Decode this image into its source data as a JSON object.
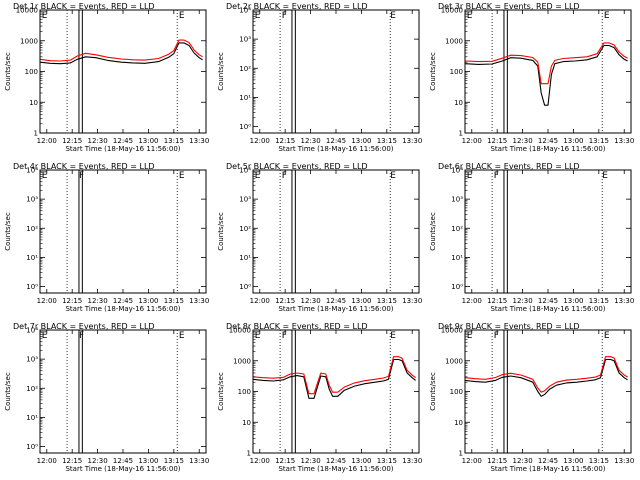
{
  "figure": {
    "x_tick_labels": [
      "12:00",
      "12:15",
      "12:30",
      "12:45",
      "13:00",
      "13:15",
      "13:30"
    ],
    "xlabel": "Start Time (18-May-16 11:56:00)",
    "ylabel": "Counts/sec",
    "series_colors": {
      "events": "#000000",
      "lld": "#ff0000"
    }
  },
  "chart_data": [
    {
      "type": "line",
      "title": "Det 1r BLACK = Events, RED = LLD",
      "xlim_min": [
        0,
        98
      ],
      "x_tick_min": [
        4,
        19,
        34,
        49,
        64,
        79,
        94
      ],
      "y_scale": "log",
      "ylim": [
        1,
        10000
      ],
      "y_ticks": [
        {
          "v": 1,
          "label": "1"
        },
        {
          "v": 10,
          "label": "10"
        },
        {
          "v": 100,
          "label": "100"
        },
        {
          "v": 1000,
          "label": "1000"
        },
        {
          "v": 10000,
          "label": "10000"
        }
      ],
      "dotted_x_min": [
        16,
        81
      ],
      "solid_x_min": [
        23,
        25
      ],
      "markers": [
        {
          "x": 1,
          "text": "E"
        },
        {
          "x": 82,
          "text": "E"
        }
      ],
      "series": [
        {
          "key": "events",
          "x": [
            0,
            6,
            12,
            18,
            22,
            27,
            33,
            40,
            48,
            55,
            62,
            70,
            76,
            79,
            82,
            85,
            88,
            91,
            94,
            96
          ],
          "values": [
            200,
            185,
            180,
            190,
            250,
            300,
            280,
            230,
            200,
            190,
            185,
            210,
            290,
            380,
            850,
            850,
            700,
            400,
            280,
            240
          ]
        },
        {
          "key": "lld",
          "x": [
            0,
            6,
            12,
            18,
            22,
            27,
            33,
            40,
            48,
            55,
            62,
            70,
            76,
            79,
            82,
            85,
            88,
            91,
            94,
            96
          ],
          "values": [
            250,
            225,
            220,
            235,
            320,
            390,
            350,
            290,
            255,
            240,
            235,
            265,
            365,
            480,
            1050,
            1050,
            870,
            500,
            350,
            300
          ]
        }
      ]
    },
    {
      "type": "line",
      "title": "Det 2r BLACK = Events, RED = LLD",
      "xlim_min": [
        0,
        98
      ],
      "x_tick_min": [
        4,
        19,
        34,
        49,
        64,
        79,
        94
      ],
      "y_scale": "log",
      "ylim": [
        0.6,
        10000
      ],
      "y_ticks": [
        {
          "v": 1,
          "label": "10⁰"
        },
        {
          "v": 10,
          "label": "10¹"
        },
        {
          "v": 100,
          "label": "10²"
        },
        {
          "v": 1000,
          "label": "10³"
        },
        {
          "v": 10000,
          "label": "10⁴"
        }
      ],
      "dotted_x_min": [
        16,
        81
      ],
      "solid_x_min": [
        23,
        25
      ],
      "markers": [
        {
          "x": 1,
          "text": "E"
        },
        {
          "x": 17,
          "text": "F"
        },
        {
          "x": 81,
          "text": "E"
        }
      ],
      "series": []
    },
    {
      "type": "line",
      "title": "Det 3r BLACK = Events, RED = LLD",
      "xlim_min": [
        0,
        98
      ],
      "x_tick_min": [
        4,
        19,
        34,
        49,
        64,
        79,
        94
      ],
      "y_scale": "log",
      "ylim": [
        1,
        10000
      ],
      "y_ticks": [
        {
          "v": 1,
          "label": "1"
        },
        {
          "v": 10,
          "label": "10"
        },
        {
          "v": 100,
          "label": "100"
        },
        {
          "v": 1000,
          "label": "1000"
        },
        {
          "v": 10000,
          "label": "10000"
        }
      ],
      "dotted_x_min": [
        16,
        81
      ],
      "solid_x_min": [
        23,
        25
      ],
      "markers": [
        {
          "x": 1,
          "text": "E"
        },
        {
          "x": 82,
          "text": "E"
        }
      ],
      "series": [
        {
          "key": "events",
          "x": [
            0,
            8,
            16,
            22,
            27,
            33,
            40,
            43,
            45,
            47,
            49,
            51,
            53,
            58,
            65,
            72,
            78,
            82,
            85,
            88,
            91,
            94,
            96
          ],
          "values": [
            180,
            170,
            175,
            220,
            280,
            270,
            230,
            150,
            20,
            8,
            8,
            80,
            180,
            210,
            220,
            240,
            300,
            700,
            700,
            600,
            350,
            250,
            220
          ]
        },
        {
          "key": "lld",
          "x": [
            0,
            8,
            16,
            22,
            27,
            33,
            40,
            43,
            45,
            47,
            49,
            51,
            53,
            58,
            65,
            72,
            78,
            82,
            85,
            88,
            91,
            94,
            96
          ],
          "values": [
            220,
            210,
            215,
            270,
            340,
            330,
            285,
            200,
            40,
            40,
            40,
            150,
            230,
            265,
            280,
            300,
            380,
            850,
            850,
            730,
            430,
            310,
            270
          ]
        }
      ]
    },
    {
      "type": "line",
      "title": "Det 4r BLACK = Events, RED = LLD",
      "xlim_min": [
        0,
        98
      ],
      "x_tick_min": [
        4,
        19,
        34,
        49,
        64,
        79,
        94
      ],
      "y_scale": "log",
      "ylim": [
        0.6,
        10000
      ],
      "y_ticks": [
        {
          "v": 1,
          "label": "10⁰"
        },
        {
          "v": 10,
          "label": "10¹"
        },
        {
          "v": 100,
          "label": "10²"
        },
        {
          "v": 1000,
          "label": "10³"
        },
        {
          "v": 10000,
          "label": "10⁴"
        }
      ],
      "dotted_x_min": [
        16,
        81
      ],
      "solid_x_min": [
        23,
        25
      ],
      "markers": [
        {
          "x": 1,
          "text": "E"
        },
        {
          "x": 23,
          "text": "F"
        },
        {
          "x": 82,
          "text": "E"
        }
      ],
      "series": []
    },
    {
      "type": "line",
      "title": "Det 5r BLACK = Events, RED = LLD",
      "xlim_min": [
        0,
        98
      ],
      "x_tick_min": [
        4,
        19,
        34,
        49,
        64,
        79,
        94
      ],
      "y_scale": "log",
      "ylim": [
        0.6,
        10000
      ],
      "y_ticks": [
        {
          "v": 1,
          "label": "10⁰"
        },
        {
          "v": 10,
          "label": "10¹"
        },
        {
          "v": 100,
          "label": "10²"
        },
        {
          "v": 1000,
          "label": "10³"
        },
        {
          "v": 10000,
          "label": "10⁴"
        }
      ],
      "dotted_x_min": [
        16,
        81
      ],
      "solid_x_min": [
        23,
        25
      ],
      "markers": [
        {
          "x": 1,
          "text": "E"
        },
        {
          "x": 17,
          "text": "F"
        },
        {
          "x": 81,
          "text": "E"
        }
      ],
      "series": []
    },
    {
      "type": "line",
      "title": "Det 6r BLACK = Events, RED = LLD",
      "xlim_min": [
        0,
        98
      ],
      "x_tick_min": [
        4,
        19,
        34,
        49,
        64,
        79,
        94
      ],
      "y_scale": "log",
      "ylim": [
        0.6,
        10000
      ],
      "y_ticks": [
        {
          "v": 1,
          "label": "10⁰"
        },
        {
          "v": 10,
          "label": "10¹"
        },
        {
          "v": 100,
          "label": "10²"
        },
        {
          "v": 1000,
          "label": "10³"
        },
        {
          "v": 10000,
          "label": "10⁴"
        }
      ],
      "dotted_x_min": [
        16,
        81
      ],
      "solid_x_min": [
        23,
        25
      ],
      "markers": [
        {
          "x": 1,
          "text": "E"
        },
        {
          "x": 17,
          "text": "F"
        },
        {
          "x": 81,
          "text": "E"
        }
      ],
      "series": []
    },
    {
      "type": "line",
      "title": "Det 7r BLACK = Events, RED = LLD",
      "xlim_min": [
        0,
        98
      ],
      "x_tick_min": [
        4,
        19,
        34,
        49,
        64,
        79,
        94
      ],
      "y_scale": "log",
      "ylim": [
        0.6,
        10000
      ],
      "y_ticks": [
        {
          "v": 1,
          "label": "10⁰"
        },
        {
          "v": 10,
          "label": "10¹"
        },
        {
          "v": 100,
          "label": "10²"
        },
        {
          "v": 1000,
          "label": "10³"
        },
        {
          "v": 10000,
          "label": "10⁴"
        }
      ],
      "dotted_x_min": [
        16,
        81
      ],
      "solid_x_min": [
        23,
        25
      ],
      "markers": [
        {
          "x": 1,
          "text": "E"
        },
        {
          "x": 23,
          "text": "F"
        },
        {
          "x": 82,
          "text": "E"
        }
      ],
      "series": []
    },
    {
      "type": "line",
      "title": "Det 8r BLACK = Events, RED = LLD",
      "xlim_min": [
        0,
        98
      ],
      "x_tick_min": [
        4,
        19,
        34,
        49,
        64,
        79,
        94
      ],
      "y_scale": "log",
      "ylim": [
        1,
        10000
      ],
      "y_ticks": [
        {
          "v": 1,
          "label": "1"
        },
        {
          "v": 10,
          "label": "10"
        },
        {
          "v": 100,
          "label": "100"
        },
        {
          "v": 1000,
          "label": "1000"
        },
        {
          "v": 10000,
          "label": "10000"
        }
      ],
      "dotted_x_min": [
        16,
        81
      ],
      "solid_x_min": [
        23,
        25
      ],
      "markers": [
        {
          "x": 1,
          "text": "E"
        },
        {
          "x": 17,
          "text": "F"
        },
        {
          "x": 81,
          "text": "E"
        }
      ],
      "series": [
        {
          "key": "events",
          "x": [
            0,
            6,
            12,
            18,
            22,
            26,
            30,
            33,
            36,
            40,
            43,
            45,
            47,
            50,
            54,
            60,
            66,
            72,
            77,
            80,
            83,
            86,
            88,
            91,
            94,
            96
          ],
          "values": [
            250,
            230,
            220,
            240,
            300,
            330,
            300,
            60,
            60,
            320,
            300,
            120,
            70,
            70,
            110,
            150,
            180,
            200,
            220,
            250,
            1100,
            1100,
            1000,
            400,
            280,
            230
          ]
        },
        {
          "key": "lld",
          "x": [
            0,
            6,
            12,
            18,
            22,
            26,
            30,
            33,
            36,
            40,
            43,
            45,
            47,
            50,
            54,
            60,
            66,
            72,
            77,
            80,
            83,
            86,
            88,
            91,
            94,
            96
          ],
          "values": [
            300,
            280,
            270,
            290,
            370,
            400,
            370,
            85,
            85,
            400,
            370,
            160,
            95,
            95,
            140,
            190,
            225,
            250,
            275,
            310,
            1350,
            1350,
            1200,
            490,
            340,
            280
          ]
        }
      ]
    },
    {
      "type": "line",
      "title": "Det 9r BLACK = Events, RED = LLD",
      "xlim_min": [
        0,
        98
      ],
      "x_tick_min": [
        4,
        19,
        34,
        49,
        64,
        79,
        94
      ],
      "y_scale": "log",
      "ylim": [
        1,
        10000
      ],
      "y_ticks": [
        {
          "v": 1,
          "label": "1"
        },
        {
          "v": 10,
          "label": "10"
        },
        {
          "v": 100,
          "label": "100"
        },
        {
          "v": 1000,
          "label": "1000"
        },
        {
          "v": 10000,
          "label": "10000"
        }
      ],
      "dotted_x_min": [
        16,
        81
      ],
      "solid_x_min": [
        23,
        25
      ],
      "markers": [
        {
          "x": 1,
          "text": "E"
        },
        {
          "x": 17,
          "text": "F"
        },
        {
          "x": 82,
          "text": "E"
        }
      ],
      "series": [
        {
          "key": "events",
          "x": [
            0,
            6,
            12,
            18,
            22,
            27,
            33,
            40,
            43,
            45,
            47,
            50,
            54,
            60,
            66,
            72,
            77,
            80,
            83,
            86,
            88,
            91,
            94,
            96
          ],
          "values": [
            230,
            210,
            200,
            230,
            290,
            320,
            280,
            200,
            100,
            70,
            80,
            120,
            160,
            190,
            200,
            220,
            240,
            280,
            1100,
            1100,
            1000,
            400,
            280,
            240
          ]
        },
        {
          "key": "lld",
          "x": [
            0,
            6,
            12,
            18,
            22,
            27,
            33,
            40,
            43,
            45,
            47,
            50,
            54,
            60,
            66,
            72,
            77,
            80,
            83,
            86,
            88,
            91,
            94,
            96
          ],
          "values": [
            280,
            260,
            250,
            285,
            355,
            390,
            345,
            250,
            130,
            95,
            105,
            150,
            200,
            235,
            250,
            270,
            295,
            345,
            1350,
            1350,
            1230,
            490,
            345,
            295
          ]
        }
      ]
    }
  ]
}
